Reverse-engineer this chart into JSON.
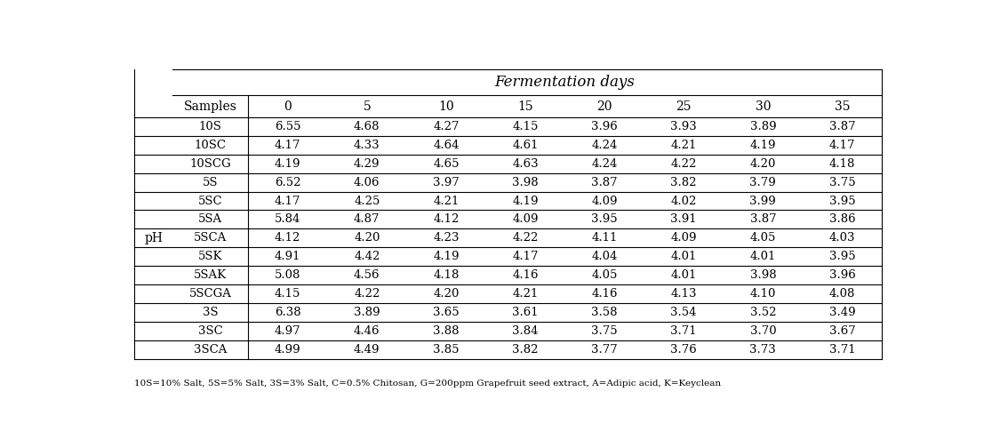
{
  "col_header_top": "Fermentation days",
  "col_header_sub": "Samples",
  "col_days": [
    "0",
    "5",
    "10",
    "15",
    "20",
    "25",
    "30",
    "35"
  ],
  "samples": [
    "10S",
    "10SC",
    "10SCG",
    "5S",
    "5SC",
    "5SA",
    "5SCA",
    "5SK",
    "5SAK",
    "5SCGA",
    "3S",
    "3SC",
    "3SCA"
  ],
  "data": [
    [
      6.55,
      4.68,
      4.27,
      4.15,
      3.96,
      3.93,
      3.89,
      3.87
    ],
    [
      4.17,
      4.33,
      4.64,
      4.61,
      4.24,
      4.21,
      4.19,
      4.17
    ],
    [
      4.19,
      4.29,
      4.65,
      4.63,
      4.24,
      4.22,
      4.2,
      4.18
    ],
    [
      6.52,
      4.06,
      3.97,
      3.98,
      3.87,
      3.82,
      3.79,
      3.75
    ],
    [
      4.17,
      4.25,
      4.21,
      4.19,
      4.09,
      4.02,
      3.99,
      3.95
    ],
    [
      5.84,
      4.87,
      4.12,
      4.09,
      3.95,
      3.91,
      3.87,
      3.86
    ],
    [
      4.12,
      4.2,
      4.23,
      4.22,
      4.11,
      4.09,
      4.05,
      4.03
    ],
    [
      4.91,
      4.42,
      4.19,
      4.17,
      4.04,
      4.01,
      4.01,
      3.95
    ],
    [
      5.08,
      4.56,
      4.18,
      4.16,
      4.05,
      4.01,
      3.98,
      3.96
    ],
    [
      4.15,
      4.22,
      4.2,
      4.21,
      4.16,
      4.13,
      4.1,
      4.08
    ],
    [
      6.38,
      3.89,
      3.65,
      3.61,
      3.58,
      3.54,
      3.52,
      3.49
    ],
    [
      4.97,
      4.46,
      3.88,
      3.84,
      3.75,
      3.71,
      3.7,
      3.67
    ],
    [
      4.99,
      4.49,
      3.85,
      3.82,
      3.77,
      3.76,
      3.73,
      3.71
    ]
  ],
  "row_label": "pH",
  "footnote": "10S=10% Salt, 5S=5% Salt, 3S=3% Salt, C=0.5% Chitosan, G=200ppm Grapefruit seed extract, A=Adipic acid, K=Keyclean",
  "bg_color": "#ffffff",
  "line_color": "#000000",
  "text_color": "#000000",
  "fig_width": 11.07,
  "fig_height": 5.04,
  "dpi": 100
}
